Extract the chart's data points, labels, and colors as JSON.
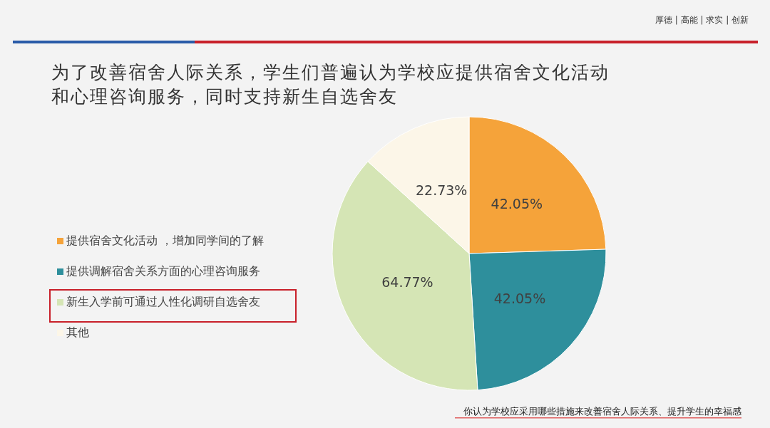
{
  "chart_data": {
    "type": "pie",
    "title": "为了改善宿舍人际关系，学生们普遍认为学校应提供宿舍文化活动和心理咨询服务，同时支持新生自选舍友",
    "categories": [
      "提供宿舍文化活动 ，增加同学间的了解",
      "提供调解宿舍关系方面的心理咨询服务",
      "新生入学前可通过人性化调研自选舍友",
      "其他"
    ],
    "values": [
      42.05,
      42.05,
      64.77,
      22.73
    ],
    "value_labels": [
      "42.05%",
      "42.05%",
      "64.77%",
      "22.73%"
    ],
    "colors": [
      "#f5a33a",
      "#2e8f9c",
      "#d5e5b5",
      "#fcf6e8"
    ],
    "legend": "left",
    "annotations": [
      "厚德 | 高能 | 求实 | 创新",
      "你认为学校应采用哪些措施来改善宿舍人际关系、提升学生的幸福感"
    ]
  }
}
